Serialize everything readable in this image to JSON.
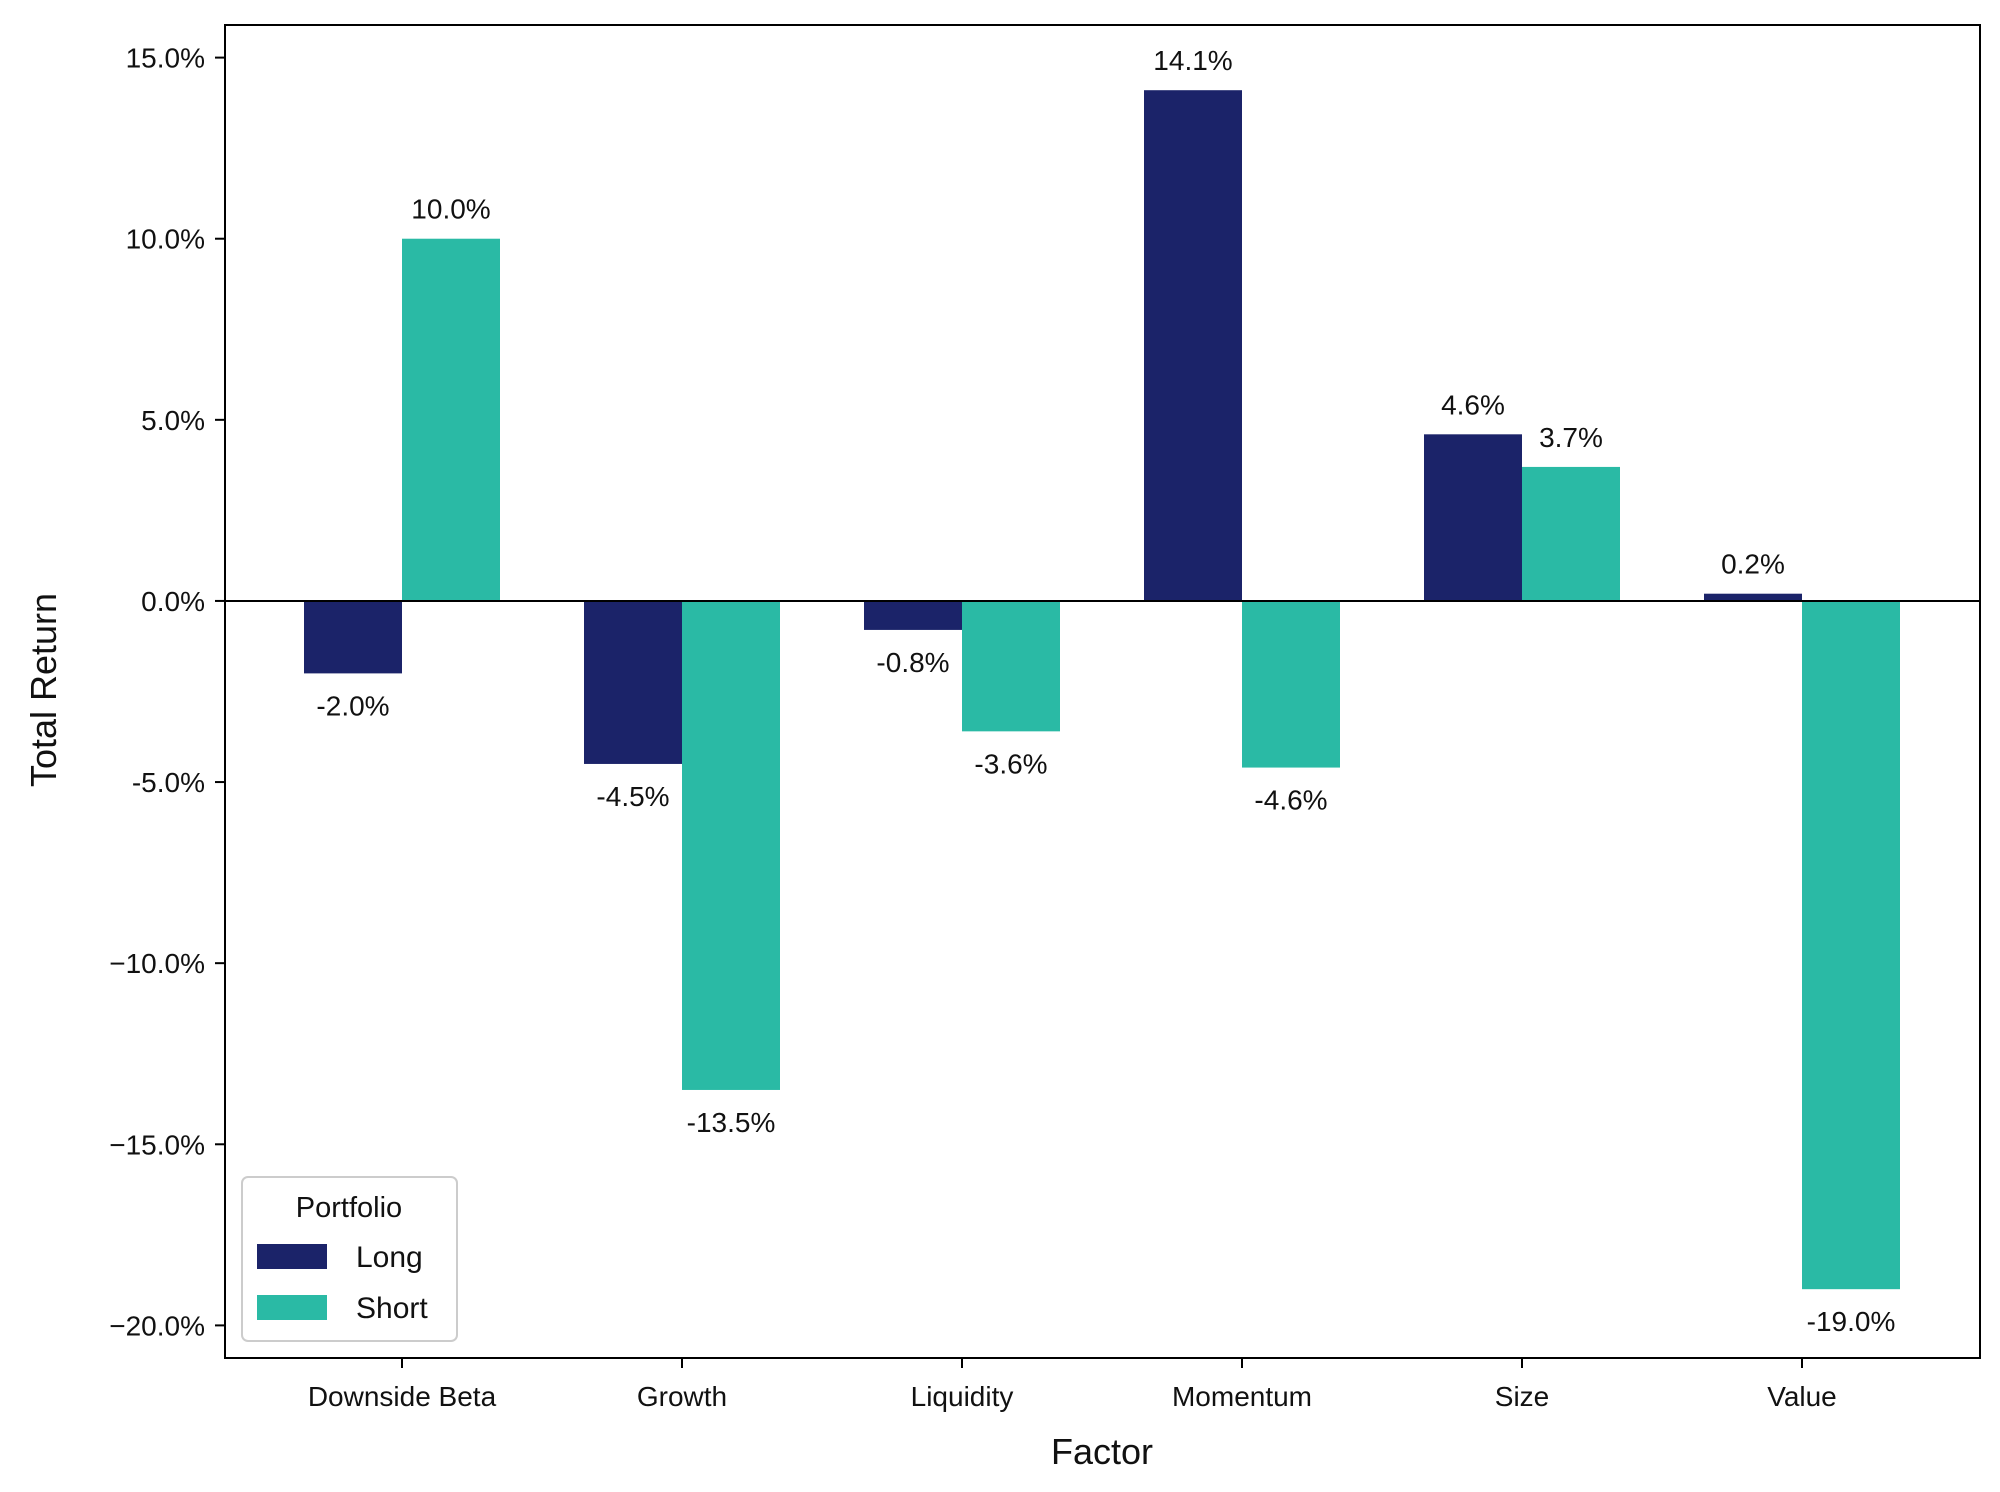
{
  "chart_data": {
    "type": "bar",
    "xlabel": "Factor",
    "ylabel": "Total Return",
    "categories": [
      "Downside Beta",
      "Growth",
      "Liquidity",
      "Momentum",
      "Size",
      "Value"
    ],
    "series": [
      {
        "name": "Long",
        "color": "#1b2369",
        "values": [
          -2.0,
          -4.5,
          -0.8,
          14.1,
          4.6,
          0.2
        ],
        "labels": [
          "-2.0%",
          "-4.5%",
          "-0.8%",
          "14.1%",
          "4.6%",
          "0.2%"
        ]
      },
      {
        "name": "Short",
        "color": "#2abaa5",
        "values": [
          10.0,
          -13.5,
          -3.6,
          -4.6,
          3.7,
          -19.0
        ],
        "labels": [
          "10.0%",
          "-13.5%",
          "-3.6%",
          "-4.6%",
          "3.7%",
          "-19.0%"
        ]
      }
    ],
    "ylim": [
      -20.9,
      15.9
    ],
    "yticks": [
      15,
      10,
      5,
      0,
      -5,
      -10,
      -15,
      -20
    ],
    "ytick_labels": [
      "15.0%",
      "10.0%",
      "5.0%",
      "0.0%",
      "-5.0%",
      "−10.0%",
      "−15.0%",
      "−20.0%"
    ],
    "zero_line": true,
    "grid": false,
    "legend": {
      "title": "Portfolio",
      "placement": "lower-left"
    }
  }
}
